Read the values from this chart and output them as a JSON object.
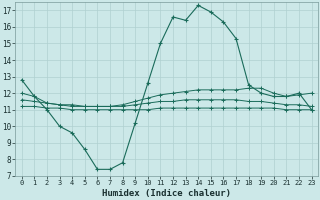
{
  "xlabel": "Humidex (Indice chaleur)",
  "background_color": "#cce8e8",
  "grid_color": "#b0d0d0",
  "line_color": "#1a6b5a",
  "xlim": [
    -0.5,
    23.5
  ],
  "ylim": [
    7,
    17.5
  ],
  "yticks": [
    7,
    8,
    9,
    10,
    11,
    12,
    13,
    14,
    15,
    16,
    17
  ],
  "xticks": [
    0,
    1,
    2,
    3,
    4,
    5,
    6,
    7,
    8,
    9,
    10,
    11,
    12,
    13,
    14,
    15,
    16,
    17,
    18,
    19,
    20,
    21,
    22,
    23
  ],
  "series1_x": [
    0,
    1,
    2,
    3,
    4,
    5,
    6,
    7,
    8,
    9,
    10,
    11,
    12,
    13,
    14,
    15,
    16,
    17,
    18,
    19,
    20,
    21,
    22,
    23
  ],
  "series1_y": [
    12.8,
    11.8,
    11.0,
    10.0,
    9.6,
    8.6,
    7.4,
    7.4,
    7.8,
    10.2,
    12.6,
    15.0,
    16.6,
    16.4,
    17.3,
    16.9,
    16.3,
    15.3,
    12.5,
    12.0,
    11.8,
    11.8,
    12.0,
    11.0
  ],
  "series2_x": [
    0,
    1,
    2,
    3,
    4,
    5,
    6,
    7,
    8,
    9,
    10,
    11,
    12,
    13,
    14,
    15,
    16,
    17,
    18,
    19,
    20,
    21,
    22,
    23
  ],
  "series2_y": [
    12.0,
    11.8,
    11.4,
    11.3,
    11.2,
    11.2,
    11.2,
    11.2,
    11.3,
    11.5,
    11.7,
    11.9,
    12.0,
    12.1,
    12.2,
    12.2,
    12.2,
    12.2,
    12.3,
    12.3,
    12.0,
    11.8,
    11.9,
    12.0
  ],
  "series3_x": [
    0,
    1,
    2,
    3,
    4,
    5,
    6,
    7,
    8,
    9,
    10,
    11,
    12,
    13,
    14,
    15,
    16,
    17,
    18,
    19,
    20,
    21,
    22,
    23
  ],
  "series3_y": [
    11.6,
    11.5,
    11.4,
    11.3,
    11.3,
    11.2,
    11.2,
    11.2,
    11.2,
    11.3,
    11.4,
    11.5,
    11.5,
    11.6,
    11.6,
    11.6,
    11.6,
    11.6,
    11.5,
    11.5,
    11.4,
    11.3,
    11.3,
    11.2
  ],
  "series4_x": [
    0,
    1,
    2,
    3,
    4,
    5,
    6,
    7,
    8,
    9,
    10,
    11,
    12,
    13,
    14,
    15,
    16,
    17,
    18,
    19,
    20,
    21,
    22,
    23
  ],
  "series4_y": [
    11.2,
    11.2,
    11.1,
    11.1,
    11.0,
    11.0,
    11.0,
    11.0,
    11.0,
    11.0,
    11.0,
    11.1,
    11.1,
    11.1,
    11.1,
    11.1,
    11.1,
    11.1,
    11.1,
    11.1,
    11.1,
    11.0,
    11.0,
    11.0
  ]
}
